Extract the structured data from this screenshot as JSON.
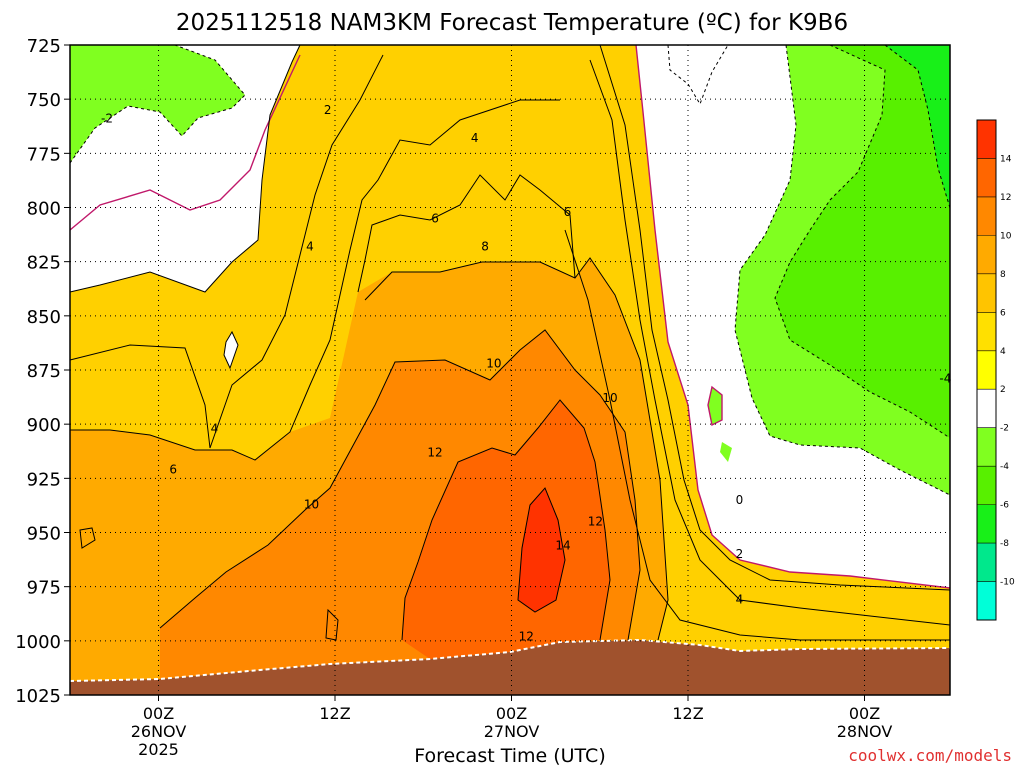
{
  "chart_data": {
    "type": "heatmap",
    "title": "2025112518 NAM3KM Forecast Temperature (ºC) for K9B6",
    "xlabel": "Forecast Time (UTC)",
    "ylabel": "",
    "credit": "coolwx.com/models",
    "x_ticks": [
      {
        "label": "00Z",
        "date": "26NOV",
        "year": "2025",
        "hour": 6
      },
      {
        "label": "12Z",
        "date": "",
        "year": "",
        "hour": 18
      },
      {
        "label": "00Z",
        "date": "27NOV",
        "year": "",
        "hour": 30
      },
      {
        "label": "12Z",
        "date": "",
        "year": "",
        "hour": 42
      },
      {
        "label": "00Z",
        "date": "28NOV",
        "year": "",
        "hour": 54
      }
    ],
    "y_ticks": [
      "725",
      "750",
      "775",
      "800",
      "825",
      "850",
      "875",
      "900",
      "925",
      "950",
      "975",
      "1000",
      "1025"
    ],
    "y_range": [
      725,
      1025
    ],
    "y_inverted": true,
    "grid": true,
    "colorbar": {
      "levels": [
        "-10",
        "-8",
        "-6",
        "-4",
        "-2",
        "2",
        "4",
        "6",
        "8",
        "10",
        "12",
        "14"
      ],
      "colors": [
        "#00ffd8",
        "#00e88c",
        "#18f018",
        "#58f000",
        "#80ff20",
        "#ffffff",
        "#ffff00",
        "#ffe000",
        "#ffc400",
        "#ffaa00",
        "#ff8800",
        "#ff6600",
        "#ff3300"
      ]
    },
    "ground_color": "#a0522d",
    "contour_labels": [
      {
        "text": "-2",
        "x": 2.5,
        "p": 759
      },
      {
        "text": "2",
        "x": 17.5,
        "p": 755
      },
      {
        "text": "4",
        "x": 27.5,
        "p": 768
      },
      {
        "text": "6",
        "x": 24.8,
        "p": 805
      },
      {
        "text": "6",
        "x": 33.8,
        "p": 802
      },
      {
        "text": "8",
        "x": 28.2,
        "p": 818
      },
      {
        "text": "4",
        "x": 16.3,
        "p": 818
      },
      {
        "text": "10",
        "x": 28.8,
        "p": 872
      },
      {
        "text": "10",
        "x": 36.7,
        "p": 888
      },
      {
        "text": "4",
        "x": 9.8,
        "p": 902
      },
      {
        "text": "12",
        "x": 24.8,
        "p": 913
      },
      {
        "text": "6",
        "x": 7.0,
        "p": 921
      },
      {
        "text": "10",
        "x": 16.4,
        "p": 937
      },
      {
        "text": "12",
        "x": 35.7,
        "p": 945
      },
      {
        "text": "14",
        "x": 33.5,
        "p": 956
      },
      {
        "text": "0",
        "x": 45.5,
        "p": 935
      },
      {
        "text": "2",
        "x": 45.5,
        "p": 960
      },
      {
        "text": "4",
        "x": 45.5,
        "p": 981
      },
      {
        "text": "12",
        "x": 31.0,
        "p": 998
      },
      {
        "text": "-4",
        "x": 59.5,
        "p": 879
      }
    ]
  }
}
